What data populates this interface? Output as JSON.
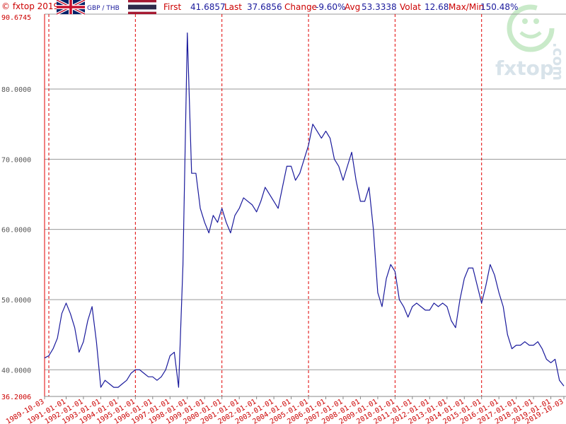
{
  "chart_data": {
    "type": "line",
    "copyright": "© fxtop 2019",
    "pair": "GBP / THB",
    "watermark": "fxtop",
    "watermark_suffix": ".com",
    "stats": [
      {
        "label": "First",
        "value": "41.6857"
      },
      {
        "label": "Last",
        "value": "37.6856"
      },
      {
        "label": "Change",
        "value": "-9.60%"
      },
      {
        "label": "Avg",
        "value": "53.3338"
      },
      {
        "label": "Volat",
        "value": "12.68"
      },
      {
        "label": "Max/Min",
        "value": "150.48%"
      }
    ],
    "xlim": [
      "1989-10-03",
      "2019-10-03"
    ],
    "xticks": [
      "1989-10-03",
      "1991-01-01",
      "1992-01-01",
      "1993-01-01",
      "1994-01-01",
      "1995-01-01",
      "1996-01-01",
      "1997-01-01",
      "1998-01-01",
      "1999-01-01",
      "2000-01-01",
      "2001-01-01",
      "2002-01-01",
      "2003-01-01",
      "2004-01-01",
      "2005-01-01",
      "2006-01-01",
      "2007-01-01",
      "2008-01-01",
      "2009-01-01",
      "2010-01-01",
      "2011-01-01",
      "2012-01-01",
      "2013-01-01",
      "2014-01-01",
      "2015-01-01",
      "2016-01-01",
      "2017-01-01",
      "2018-01-01",
      "2019-01-01",
      "2019-10-03"
    ],
    "ylim": [
      36.2006,
      90.6745
    ],
    "yticks": [
      {
        "value": 36.2006,
        "label": "36.2006"
      },
      {
        "value": 40,
        "label": "40.0000"
      },
      {
        "value": 50,
        "label": "50.0000"
      },
      {
        "value": 60,
        "label": "60.0000"
      },
      {
        "value": 70,
        "label": "70.0000"
      },
      {
        "value": 80,
        "label": "80.0000"
      },
      {
        "value": 90.6745,
        "label": "90.6745"
      }
    ],
    "grid": true,
    "x": [
      "1989-10-03",
      "1990-01-01",
      "1990-04-01",
      "1990-07-01",
      "1990-10-01",
      "1991-01-01",
      "1991-04-01",
      "1991-07-01",
      "1991-10-01",
      "1992-01-01",
      "1992-04-01",
      "1992-07-01",
      "1992-10-01",
      "1993-01-01",
      "1993-04-01",
      "1993-07-01",
      "1993-10-01",
      "1994-01-01",
      "1994-04-01",
      "1994-07-01",
      "1994-10-01",
      "1995-01-01",
      "1995-04-01",
      "1995-07-01",
      "1995-10-01",
      "1996-01-01",
      "1996-04-01",
      "1996-07-01",
      "1996-10-01",
      "1997-01-01",
      "1997-04-01",
      "1997-07-01",
      "1997-10-01",
      "1998-01-01",
      "1998-04-01",
      "1998-07-01",
      "1998-10-01",
      "1999-01-01",
      "1999-04-01",
      "1999-07-01",
      "1999-10-01",
      "2000-01-01",
      "2000-04-01",
      "2000-07-01",
      "2000-10-01",
      "2001-01-01",
      "2001-04-01",
      "2001-07-01",
      "2001-10-01",
      "2002-01-01",
      "2002-04-01",
      "2002-07-01",
      "2002-10-01",
      "2003-01-01",
      "2003-04-01",
      "2003-07-01",
      "2003-10-01",
      "2004-01-01",
      "2004-04-01",
      "2004-07-01",
      "2004-10-01",
      "2005-01-01",
      "2005-04-01",
      "2005-07-01",
      "2005-10-01",
      "2006-01-01",
      "2006-04-01",
      "2006-07-01",
      "2006-10-01",
      "2007-01-01",
      "2007-04-01",
      "2007-07-01",
      "2007-10-01",
      "2008-01-01",
      "2008-04-01",
      "2008-07-01",
      "2008-10-01",
      "2009-01-01",
      "2009-04-01",
      "2009-07-01",
      "2009-10-01",
      "2010-01-01",
      "2010-04-01",
      "2010-07-01",
      "2010-10-01",
      "2011-01-01",
      "2011-04-01",
      "2011-07-01",
      "2011-10-01",
      "2012-01-01",
      "2012-04-01",
      "2012-07-01",
      "2012-10-01",
      "2013-01-01",
      "2013-04-01",
      "2013-07-01",
      "2013-10-01",
      "2014-01-01",
      "2014-04-01",
      "2014-07-01",
      "2014-10-01",
      "2015-01-01",
      "2015-04-01",
      "2015-07-01",
      "2015-10-01",
      "2016-01-01",
      "2016-04-01",
      "2016-07-01",
      "2016-10-01",
      "2017-01-01",
      "2017-04-01",
      "2017-07-01",
      "2017-10-01",
      "2018-01-01",
      "2018-04-01",
      "2018-07-01",
      "2018-10-01",
      "2019-01-01",
      "2019-04-01",
      "2019-07-01",
      "2019-10-03"
    ],
    "series": [
      {
        "name": "GBP / THB",
        "color": "#1a1a9c",
        "values": [
          41.6857,
          42,
          43,
          44.5,
          48,
          49.5,
          48,
          46,
          42.5,
          44,
          47,
          49,
          44,
          37.5,
          38.5,
          38,
          37.5,
          37.5,
          38,
          38.5,
          39.5,
          40,
          40,
          39.5,
          39,
          39,
          38.5,
          39,
          40,
          42,
          42.5,
          37.5,
          55,
          88,
          68,
          68,
          63,
          61,
          59.5,
          62,
          61,
          63,
          61,
          59.5,
          62,
          63,
          64.5,
          64,
          63.5,
          62.5,
          64,
          66,
          65,
          64,
          63,
          66,
          69,
          69,
          67,
          68,
          70,
          72,
          75,
          74,
          73,
          74,
          73,
          70,
          69,
          67,
          69,
          71,
          67,
          64,
          64,
          66,
          60,
          51,
          49,
          53,
          55,
          54,
          50,
          49,
          47.5,
          49,
          49.5,
          49,
          48.5,
          48.5,
          49.5,
          49,
          49.5,
          49,
          47,
          46,
          50,
          53,
          54.5,
          54.5,
          52,
          49.5,
          52,
          55,
          53.5,
          51,
          49,
          45,
          43,
          43.5,
          43.5,
          44,
          43.5,
          43.5,
          44,
          43,
          41.5,
          41,
          41.5,
          38.5,
          37.6856
        ]
      }
    ]
  }
}
